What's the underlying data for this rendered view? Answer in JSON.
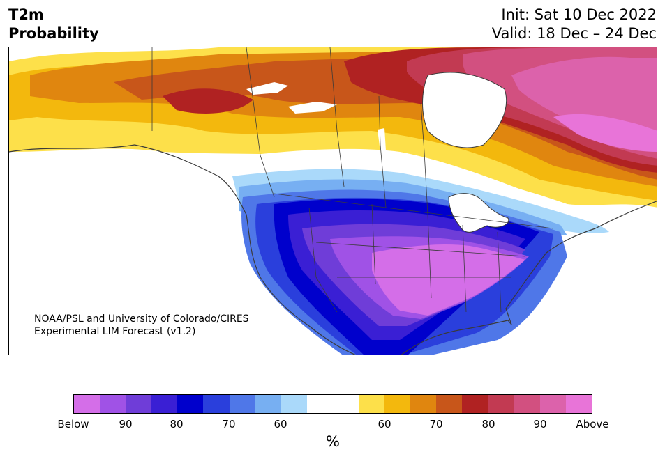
{
  "header": {
    "variable": "T2m",
    "quantity": "Probability",
    "init": "Init: Sat 10 Dec 2022",
    "valid": "Valid: 18 Dec – 24 Dec"
  },
  "credit": {
    "line1": "NOAA/PSL and University of Colorado/CIRES",
    "line2": "Experimental LIM Forecast (v1.2)"
  },
  "colorbar": {
    "unit": "%",
    "colors": [
      "#d46ee8",
      "#a052e6",
      "#6f3dd8",
      "#3a1fd4",
      "#0000cc",
      "#2a3fdc",
      "#4f77e8",
      "#77aff2",
      "#aad9fa",
      "#ffffff",
      "#ffffff",
      "#fde04a",
      "#f3b80d",
      "#e0860f",
      "#c8561a",
      "#b02222",
      "#c23a52",
      "#d25080",
      "#dc62ab",
      "#e874d8"
    ],
    "ticks": [
      {
        "label": "Below"
      },
      {
        "label": "90"
      },
      {
        "label": "80"
      },
      {
        "label": "70"
      },
      {
        "label": "60"
      },
      {
        "label": "60"
      },
      {
        "label": "70"
      },
      {
        "label": "80"
      },
      {
        "label": "90"
      },
      {
        "label": "Above"
      }
    ]
  }
}
